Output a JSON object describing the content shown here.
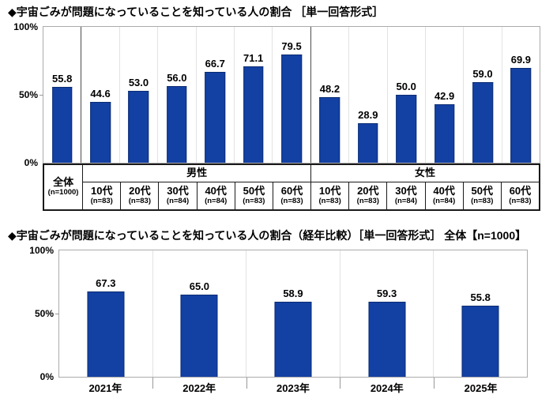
{
  "colors": {
    "bar_fill": "#1340A3",
    "bar_border": "#0A2C72",
    "frame_gray": "#ABABAB",
    "column_grid": "#E2E2E2",
    "group_divider": "#4D4D4D",
    "table_border": "#1A1A1A",
    "text": "#000000"
  },
  "chart_data": [
    {
      "id": "awareness_by_demographic",
      "type": "bar",
      "title": "◆宇宙ごみが問題になっていることを知っている人の割合 ［単一回答形式］",
      "ylim": [
        0,
        100
      ],
      "yticks": [
        "100%",
        "50%",
        "0%"
      ],
      "grid": false,
      "legend_position": "none",
      "value_label_format": "one-decimal",
      "group_headers": [
        {
          "label": "全体",
          "sub": "(n=1000)",
          "cols": 1,
          "spans_both_rows": true
        },
        {
          "label": "男性",
          "cols": 6
        },
        {
          "label": "女性",
          "cols": 6
        }
      ],
      "columns": [
        {
          "group": "全体",
          "label": "全体",
          "n": "(n=1000)",
          "value": 55.8
        },
        {
          "group": "男性",
          "label": "10代",
          "n": "(n=83)",
          "value": 44.6
        },
        {
          "group": "男性",
          "label": "20代",
          "n": "(n=83)",
          "value": 53.0
        },
        {
          "group": "男性",
          "label": "30代",
          "n": "(n=84)",
          "value": 56.0
        },
        {
          "group": "男性",
          "label": "40代",
          "n": "(n=84)",
          "value": 66.7
        },
        {
          "group": "男性",
          "label": "50代",
          "n": "(n=83)",
          "value": 71.1
        },
        {
          "group": "男性",
          "label": "60代",
          "n": "(n=83)",
          "value": 79.5
        },
        {
          "group": "女性",
          "label": "10代",
          "n": "(n=83)",
          "value": 48.2
        },
        {
          "group": "女性",
          "label": "20代",
          "n": "(n=83)",
          "value": 28.9
        },
        {
          "group": "女性",
          "label": "30代",
          "n": "(n=84)",
          "value": 50.0
        },
        {
          "group": "女性",
          "label": "40代",
          "n": "(n=84)",
          "value": 42.9
        },
        {
          "group": "女性",
          "label": "50代",
          "n": "(n=83)",
          "value": 59.0
        },
        {
          "group": "女性",
          "label": "60代",
          "n": "(n=83)",
          "value": 69.9
        }
      ]
    },
    {
      "id": "awareness_by_year",
      "type": "bar",
      "title": "◆宇宙ごみが問題になっていることを知っている人の割合（経年比較）［単一回答形式］ 全体【n=1000】",
      "ylim": [
        0,
        100
      ],
      "yticks": [
        "100%",
        "50%",
        "0%"
      ],
      "grid": false,
      "legend_position": "none",
      "value_label_format": "one-decimal",
      "categories": [
        "2021年",
        "2022年",
        "2023年",
        "2024年",
        "2025年"
      ],
      "values": [
        67.3,
        65.0,
        58.9,
        59.3,
        55.8
      ]
    }
  ]
}
